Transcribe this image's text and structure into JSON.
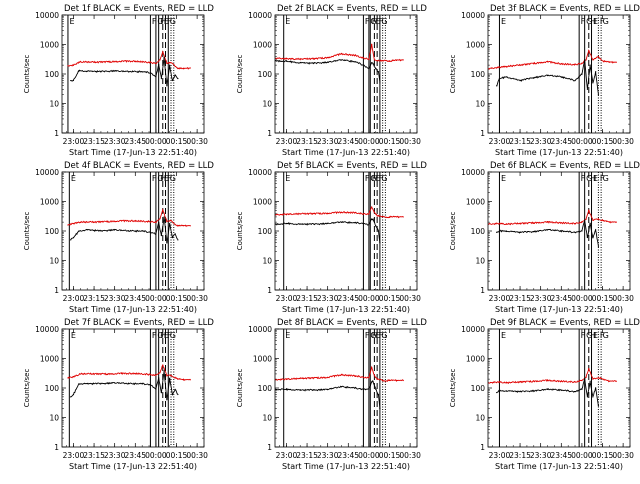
{
  "chart_data": {
    "type": "line",
    "common": {
      "ylabel": "Counts/sec",
      "xlabel": "Start Time (17-Jun-13 22:51:40)",
      "yscale": "log",
      "ylim": [
        1,
        10000
      ],
      "y_ticks": [
        "1",
        "10",
        "100",
        "1000",
        "10000"
      ],
      "xlim": [
        "22:51:40",
        "00:35"
      ],
      "x_ticks": [
        "23:00",
        "23:15",
        "23:30",
        "23:45",
        "00:00",
        "00:15",
        "00:30"
      ],
      "series_colors": {
        "events": "#000000",
        "lld": "#e00000"
      },
      "grid": false
    },
    "panels": [
      {
        "title": "Det 1f BLACK = Events, RED = LLD",
        "flags": [
          "E",
          "F",
          "G",
          "H",
          "E",
          "F",
          "G"
        ],
        "solid_markers": [
          "22:56",
          "23:56",
          "00:00",
          "00:02",
          "00:09"
        ],
        "dashed_markers": [
          "00:05",
          "00:07"
        ],
        "dotted_markers": [
          "00:11",
          "00:13"
        ],
        "events": {
          "x": [
            "22:58",
            "23:00",
            "23:04",
            "23:10",
            "23:20",
            "23:30",
            "23:40",
            "23:50",
            "23:56",
            "00:00",
            "00:02",
            "00:04",
            "00:06",
            "00:08",
            "00:10",
            "00:12",
            "00:14",
            "00:16"
          ],
          "y": [
            60,
            60,
            130,
            125,
            120,
            128,
            120,
            120,
            110,
            80,
            210,
            70,
            360,
            40,
            200,
            60,
            90,
            70
          ]
        },
        "lld": {
          "x": [
            "22:56",
            "23:00",
            "23:05",
            "23:15",
            "23:25",
            "23:35",
            "23:45",
            "23:55",
            "00:00",
            "00:03",
            "00:05",
            "00:08",
            "00:11",
            "00:16",
            "00:20",
            "00:25"
          ],
          "y": [
            190,
            200,
            260,
            250,
            260,
            270,
            270,
            250,
            230,
            300,
            560,
            230,
            240,
            160,
            150,
            160
          ]
        }
      },
      {
        "title": "Det 2f BLACK = Events, RED = LLD",
        "flags": [
          "E",
          "F",
          "G",
          "H",
          "E",
          "F",
          "G"
        ],
        "solid_markers": [
          "22:58",
          "23:56",
          "00:00",
          "00:01",
          "00:08"
        ],
        "dashed_markers": [
          "00:04",
          "00:06"
        ],
        "dotted_markers": [
          "00:10",
          "00:12"
        ],
        "events": {
          "x": [
            "22:52",
            "23:00",
            "23:10",
            "23:20",
            "23:30",
            "23:40",
            "23:50",
            "23:56",
            "00:00",
            "00:02",
            "00:03",
            "00:05",
            "00:07",
            "00:08"
          ],
          "y": [
            280,
            270,
            240,
            230,
            250,
            300,
            260,
            200,
            150,
            240,
            220,
            150,
            120,
            50
          ]
        },
        "lld": {
          "x": [
            "22:52",
            "23:00",
            "23:10",
            "23:20",
            "23:30",
            "23:40",
            "23:50",
            "23:56",
            "00:00",
            "00:02",
            "00:04",
            "00:06",
            "00:10",
            "00:15",
            "00:20",
            "00:25"
          ],
          "y": [
            340,
            330,
            320,
            330,
            360,
            480,
            430,
            350,
            320,
            1000,
            300,
            280,
            280,
            280,
            290,
            300
          ]
        }
      },
      {
        "title": "Det 3f BLACK = Events, RED = LLD",
        "flags": [
          "E",
          "F",
          "G",
          "H",
          "E",
          "F",
          "G"
        ],
        "solid_markers": [
          "23:00",
          "23:58",
          "00:02",
          "00:07"
        ],
        "dashed_markers": [
          "00:05"
        ],
        "dotted_markers": [
          "00:12",
          "00:14"
        ],
        "events": {
          "x": [
            "22:58",
            "23:00",
            "23:05",
            "23:15",
            "23:25",
            "23:35",
            "23:45",
            "23:55",
            "00:00",
            "00:02",
            "00:04",
            "00:06",
            "00:08",
            "00:10",
            "00:12"
          ],
          "y": [
            40,
            70,
            80,
            60,
            75,
            90,
            80,
            60,
            100,
            300,
            30,
            200,
            50,
            120,
            20
          ]
        },
        "lld": {
          "x": [
            "22:52",
            "23:00",
            "23:05",
            "23:15",
            "23:25",
            "23:35",
            "23:45",
            "23:55",
            "00:00",
            "00:03",
            "00:05",
            "00:08",
            "00:12",
            "00:16",
            "00:20",
            "00:25"
          ],
          "y": [
            150,
            170,
            180,
            200,
            230,
            260,
            220,
            210,
            230,
            300,
            620,
            300,
            380,
            270,
            250,
            250
          ]
        }
      },
      {
        "title": "Det 4f BLACK = Events, RED = LLD",
        "flags": [
          "E",
          "F",
          "G",
          "H",
          "E",
          "F",
          "G"
        ],
        "solid_markers": [
          "22:57",
          "23:56",
          "00:00",
          "00:02",
          "00:09"
        ],
        "dashed_markers": [
          "00:05",
          "00:07"
        ],
        "dotted_markers": [
          "00:11",
          "00:13"
        ],
        "events": {
          "x": [
            "22:58",
            "23:00",
            "23:04",
            "23:10",
            "23:20",
            "23:30",
            "23:40",
            "23:50",
            "23:56",
            "00:00",
            "00:02",
            "00:04",
            "00:06",
            "00:08",
            "00:10",
            "00:12",
            "00:14",
            "00:16"
          ],
          "y": [
            50,
            60,
            100,
            110,
            100,
            110,
            100,
            100,
            90,
            80,
            190,
            70,
            300,
            40,
            180,
            60,
            80,
            50
          ]
        },
        "lld": {
          "x": [
            "22:56",
            "23:00",
            "23:05",
            "23:15",
            "23:25",
            "23:35",
            "23:45",
            "23:55",
            "00:00",
            "00:03",
            "00:05",
            "00:08",
            "00:11",
            "00:16",
            "00:20",
            "00:25"
          ],
          "y": [
            160,
            180,
            200,
            200,
            210,
            220,
            220,
            210,
            200,
            260,
            520,
            210,
            220,
            150,
            150,
            150
          ]
        }
      },
      {
        "title": "Det 5f BLACK = Events, RED = LLD",
        "flags": [
          "E",
          "F",
          "G",
          "H",
          "E",
          "F",
          "G"
        ],
        "solid_markers": [
          "22:58",
          "23:56",
          "00:00",
          "00:01",
          "00:08"
        ],
        "dashed_markers": [
          "00:04",
          "00:06"
        ],
        "dotted_markers": [
          "00:10",
          "00:12"
        ],
        "events": {
          "x": [
            "22:52",
            "23:00",
            "23:10",
            "23:20",
            "23:30",
            "23:40",
            "23:50",
            "23:56",
            "00:00",
            "00:02",
            "00:03",
            "00:05",
            "00:07",
            "00:08"
          ],
          "y": [
            170,
            180,
            170,
            170,
            180,
            200,
            190,
            180,
            160,
            250,
            250,
            150,
            100,
            40
          ]
        },
        "lld": {
          "x": [
            "22:52",
            "23:00",
            "23:10",
            "23:20",
            "23:30",
            "23:40",
            "23:50",
            "23:56",
            "00:00",
            "00:02",
            "00:04",
            "00:06",
            "00:10",
            "00:15",
            "00:20",
            "00:25"
          ],
          "y": [
            350,
            370,
            380,
            390,
            400,
            430,
            420,
            380,
            380,
            650,
            420,
            330,
            300,
            300,
            300,
            300
          ]
        }
      },
      {
        "title": "Det 6f BLACK = Events, RED = LLD",
        "flags": [
          "E",
          "F",
          "G",
          "H",
          "E",
          "F",
          "G"
        ],
        "solid_markers": [
          "23:00",
          "23:58",
          "00:02",
          "00:07"
        ],
        "dashed_markers": [
          "00:05"
        ],
        "dotted_markers": [
          "00:12",
          "00:14"
        ],
        "events": {
          "x": [
            "22:58",
            "23:00",
            "23:05",
            "23:15",
            "23:25",
            "23:35",
            "23:45",
            "23:55",
            "00:00",
            "00:02",
            "00:04",
            "00:06",
            "00:08",
            "00:10",
            "00:12"
          ],
          "y": [
            90,
            100,
            100,
            90,
            95,
            110,
            100,
            90,
            100,
            230,
            60,
            180,
            60,
            110,
            30
          ]
        },
        "lld": {
          "x": [
            "22:52",
            "23:00",
            "23:05",
            "23:15",
            "23:25",
            "23:35",
            "23:45",
            "23:55",
            "00:00",
            "00:03",
            "00:05",
            "00:08",
            "00:12",
            "00:16",
            "00:20",
            "00:25"
          ],
          "y": [
            170,
            180,
            170,
            180,
            190,
            200,
            190,
            180,
            200,
            250,
            500,
            230,
            260,
            220,
            200,
            200
          ]
        }
      },
      {
        "title": "Det 7f BLACK = Events, RED = LLD",
        "flags": [
          "E",
          "F",
          "G",
          "H",
          "E",
          "F",
          "G"
        ],
        "solid_markers": [
          "22:57",
          "23:56",
          "00:00",
          "00:02",
          "00:09"
        ],
        "dashed_markers": [
          "00:05",
          "00:07"
        ],
        "dotted_markers": [
          "00:11",
          "00:13"
        ],
        "events": {
          "x": [
            "22:58",
            "23:00",
            "23:04",
            "23:10",
            "23:20",
            "23:30",
            "23:40",
            "23:50",
            "23:56",
            "00:00",
            "00:02",
            "00:04",
            "00:06",
            "00:08",
            "00:10",
            "00:12",
            "00:14",
            "00:16"
          ],
          "y": [
            50,
            60,
            140,
            140,
            140,
            150,
            140,
            140,
            130,
            90,
            220,
            70,
            380,
            40,
            210,
            60,
            90,
            60
          ]
        },
        "lld": {
          "x": [
            "22:56",
            "23:00",
            "23:05",
            "23:15",
            "23:25",
            "23:35",
            "23:45",
            "23:55",
            "00:00",
            "00:03",
            "00:05",
            "00:08",
            "00:11",
            "00:16",
            "00:20",
            "00:25"
          ],
          "y": [
            220,
            240,
            300,
            300,
            300,
            310,
            310,
            290,
            270,
            330,
            600,
            260,
            270,
            200,
            190,
            190
          ]
        }
      },
      {
        "title": "Det 8f BLACK = Events, RED = LLD",
        "flags": [
          "E",
          "F",
          "G",
          "H",
          "E",
          "F",
          "G"
        ],
        "solid_markers": [
          "22:58",
          "23:56",
          "00:00",
          "00:01",
          "00:08"
        ],
        "dashed_markers": [
          "00:04",
          "00:06"
        ],
        "dotted_markers": [
          "00:10",
          "00:12"
        ],
        "events": {
          "x": [
            "22:52",
            "23:00",
            "23:10",
            "23:20",
            "23:30",
            "23:40",
            "23:50",
            "23:56",
            "00:00",
            "00:02",
            "00:03",
            "00:05",
            "00:07",
            "00:08"
          ],
          "y": [
            90,
            90,
            85,
            85,
            90,
            110,
            100,
            90,
            90,
            160,
            170,
            90,
            60,
            20
          ]
        },
        "lld": {
          "x": [
            "22:52",
            "23:00",
            "23:10",
            "23:20",
            "23:30",
            "23:40",
            "23:50",
            "23:56",
            "00:00",
            "00:02",
            "00:04",
            "00:06",
            "00:10",
            "00:15",
            "00:20",
            "00:25"
          ],
          "y": [
            190,
            200,
            210,
            220,
            230,
            280,
            260,
            230,
            220,
            500,
            260,
            200,
            180,
            180,
            180,
            180
          ]
        }
      },
      {
        "title": "Det 9f BLACK = Events, RED = LLD",
        "flags": [
          "E",
          "F",
          "G",
          "H",
          "E",
          "F",
          "G"
        ],
        "solid_markers": [
          "23:00",
          "23:58",
          "00:02",
          "00:07"
        ],
        "dashed_markers": [
          "00:05"
        ],
        "dotted_markers": [
          "00:12",
          "00:14"
        ],
        "events": {
          "x": [
            "22:58",
            "23:00",
            "23:05",
            "23:15",
            "23:25",
            "23:35",
            "23:45",
            "23:55",
            "00:00",
            "00:02",
            "00:04",
            "00:06",
            "00:08",
            "00:10",
            "00:12"
          ],
          "y": [
            70,
            80,
            80,
            75,
            80,
            90,
            85,
            75,
            90,
            210,
            50,
            170,
            50,
            100,
            25
          ]
        },
        "lld": {
          "x": [
            "22:52",
            "23:00",
            "23:05",
            "23:15",
            "23:25",
            "23:35",
            "23:45",
            "23:55",
            "00:00",
            "00:03",
            "00:05",
            "00:08",
            "00:12",
            "00:16",
            "00:20",
            "00:25"
          ],
          "y": [
            150,
            160,
            150,
            160,
            170,
            180,
            170,
            160,
            180,
            230,
            450,
            200,
            230,
            190,
            170,
            170
          ]
        }
      }
    ]
  }
}
